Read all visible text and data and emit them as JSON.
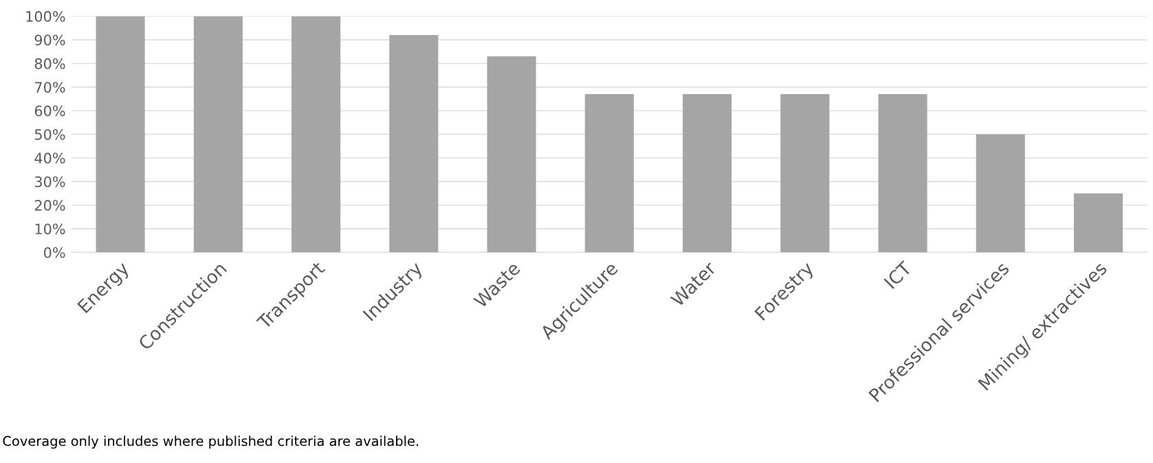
{
  "chart_data": {
    "type": "bar",
    "categories": [
      "Energy",
      "Construction",
      "Transport",
      "Industry",
      "Waste",
      "Agriculture",
      "Water",
      "Forestry",
      "ICT",
      "Professional services",
      "Mining/ extractives"
    ],
    "values": [
      100,
      100,
      100,
      92,
      83,
      67,
      67,
      67,
      67,
      50,
      25
    ],
    "color": "#a5a5a5",
    "ylim": [
      0,
      100
    ],
    "yticks": [
      {
        "value": 0,
        "label": "0%"
      },
      {
        "value": 10,
        "label": "10%"
      },
      {
        "value": 20,
        "label": "20%"
      },
      {
        "value": 30,
        "label": "30%"
      },
      {
        "value": 40,
        "label": "40%"
      },
      {
        "value": 50,
        "label": "50%"
      },
      {
        "value": 60,
        "label": "60%"
      },
      {
        "value": 70,
        "label": "70%"
      },
      {
        "value": 80,
        "label": "80%"
      },
      {
        "value": 90,
        "label": "90%"
      },
      {
        "value": 100,
        "label": "100%"
      }
    ],
    "grid": "y",
    "annotations": [
      "Coverage only includes where published criteria are available."
    ]
  }
}
